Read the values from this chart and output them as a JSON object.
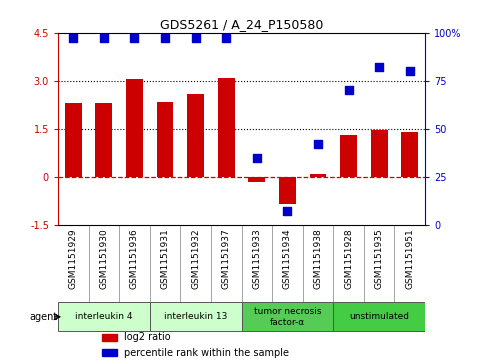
{
  "title": "GDS5261 / A_24_P150580",
  "samples": [
    "GSM1151929",
    "GSM1151930",
    "GSM1151936",
    "GSM1151931",
    "GSM1151932",
    "GSM1151937",
    "GSM1151933",
    "GSM1151934",
    "GSM1151938",
    "GSM1151928",
    "GSM1151935",
    "GSM1151951"
  ],
  "log2_ratio": [
    2.3,
    2.3,
    3.05,
    2.35,
    2.6,
    3.1,
    -0.15,
    -0.85,
    0.1,
    1.3,
    1.45,
    1.4
  ],
  "percentile": [
    97,
    97,
    97,
    97,
    97,
    97,
    35,
    7,
    42,
    70,
    82,
    80
  ],
  "ylim": [
    -1.5,
    4.5
  ],
  "yticks_left": [
    -1.5,
    0,
    1.5,
    3.0,
    4.5
  ],
  "yticks_right": [
    0,
    25,
    50,
    75,
    100
  ],
  "hlines": [
    1.5,
    3.0
  ],
  "bar_color": "#cc0000",
  "dot_color": "#0000cc",
  "zero_line_color": "#cc0000",
  "groups": [
    {
      "label": "interleukin 4",
      "start": 0,
      "end": 3,
      "color": "#ccffcc",
      "border": "#008800"
    },
    {
      "label": "interleukin 13",
      "start": 3,
      "end": 6,
      "color": "#ccffcc",
      "border": "#008800"
    },
    {
      "label": "tumor necrosis\nfactor-α",
      "start": 6,
      "end": 9,
      "color": "#44bb44",
      "border": "#008800"
    },
    {
      "label": "unstimulated",
      "start": 9,
      "end": 12,
      "color": "#44bb44",
      "border": "#008800"
    }
  ],
  "agent_label": "agent",
  "legend_items": [
    {
      "label": "log2 ratio",
      "color": "#cc0000"
    },
    {
      "label": "percentile rank within the sample",
      "color": "#0000cc"
    }
  ]
}
